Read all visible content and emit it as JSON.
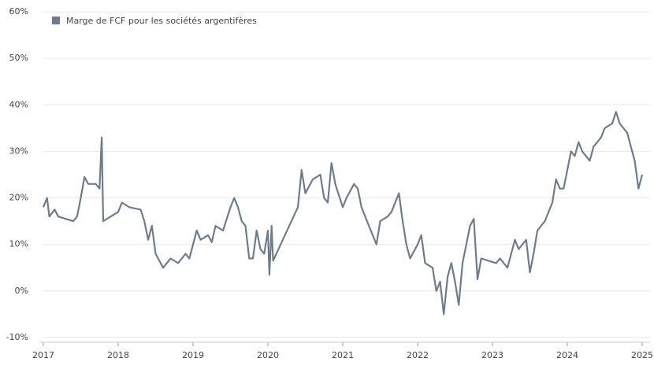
{
  "chart_data": {
    "type": "line",
    "series": [
      {
        "name": "Marge de FCF pour les sociétés argentifères",
        "color": "#6d7d8e",
        "x": [
          2017.0,
          2017.05,
          2017.08,
          2017.15,
          2017.2,
          2017.3,
          2017.4,
          2017.45,
          2017.5,
          2017.55,
          2017.6,
          2017.7,
          2017.75,
          2017.78,
          2017.8,
          2017.9,
          2018.0,
          2018.05,
          2018.15,
          2018.3,
          2018.35,
          2018.4,
          2018.45,
          2018.5,
          2018.6,
          2018.7,
          2018.8,
          2018.9,
          2018.95,
          2019.0,
          2019.05,
          2019.1,
          2019.2,
          2019.25,
          2019.3,
          2019.4,
          2019.5,
          2019.55,
          2019.6,
          2019.65,
          2019.7,
          2019.75,
          2019.8,
          2019.85,
          2019.9,
          2019.95,
          2020.0,
          2020.02,
          2020.05,
          2020.07,
          2020.4,
          2020.45,
          2020.5,
          2020.6,
          2020.7,
          2020.75,
          2020.8,
          2020.85,
          2020.9,
          2021.0,
          2021.05,
          2021.15,
          2021.2,
          2021.25,
          2021.35,
          2021.45,
          2021.5,
          2021.6,
          2021.65,
          2021.75,
          2021.8,
          2021.85,
          2021.9,
          2022.0,
          2022.05,
          2022.1,
          2022.2,
          2022.25,
          2022.3,
          2022.35,
          2022.4,
          2022.45,
          2022.5,
          2022.55,
          2022.6,
          2022.65,
          2022.7,
          2022.75,
          2022.8,
          2022.85,
          2023.05,
          2023.1,
          2023.2,
          2023.3,
          2023.35,
          2023.45,
          2023.5,
          2023.55,
          2023.6,
          2023.7,
          2023.8,
          2023.85,
          2023.9,
          2023.95,
          2024.0,
          2024.05,
          2024.1,
          2024.15,
          2024.2,
          2024.3,
          2024.35,
          2024.45,
          2024.5,
          2024.6,
          2024.65,
          2024.7,
          2024.8,
          2024.85,
          2024.9,
          2024.95,
          2025.0
        ],
        "values": [
          18,
          20,
          16,
          17.5,
          16,
          15.5,
          15,
          16,
          20,
          24.5,
          23,
          23,
          22,
          33,
          15,
          16,
          17,
          19,
          18,
          17.5,
          15,
          11,
          14,
          8,
          5,
          7,
          6,
          8,
          7,
          10,
          13,
          11,
          12,
          10.5,
          14,
          13,
          18,
          20,
          18,
          15,
          14,
          7,
          7,
          13,
          9,
          8,
          13,
          3.5,
          14,
          6.5,
          18,
          26,
          21,
          24,
          25,
          20,
          19,
          27.5,
          23,
          18,
          20,
          23,
          22,
          18,
          14,
          10,
          15,
          16,
          17,
          21,
          15,
          10,
          7,
          10,
          12,
          6,
          5,
          0,
          2,
          -5,
          3,
          6,
          2,
          -3,
          6,
          10,
          14,
          15.5,
          2.5,
          7,
          6,
          7,
          5,
          11,
          9,
          11,
          4,
          8,
          13,
          15,
          19,
          24,
          22,
          22,
          26,
          30,
          29,
          32,
          30,
          28,
          31,
          33,
          35,
          36,
          38.5,
          36,
          34,
          31,
          28,
          22,
          25
        ]
      }
    ],
    "xlim": [
      2017,
      2025
    ],
    "xticks": [
      2017,
      2018,
      2019,
      2020,
      2021,
      2022,
      2023,
      2024,
      2025
    ],
    "ylim": [
      -10,
      60
    ],
    "yticks": [
      {
        "value": -10,
        "label": "-10%"
      },
      {
        "value": 0,
        "label": "0%"
      },
      {
        "value": 10,
        "label": "10%"
      },
      {
        "value": 20,
        "label": "20%"
      },
      {
        "value": 30,
        "label": "30%"
      },
      {
        "value": 40,
        "label": "40%"
      },
      {
        "value": 50,
        "label": "50%"
      },
      {
        "value": 60,
        "label": "60%"
      }
    ],
    "grid": true
  }
}
